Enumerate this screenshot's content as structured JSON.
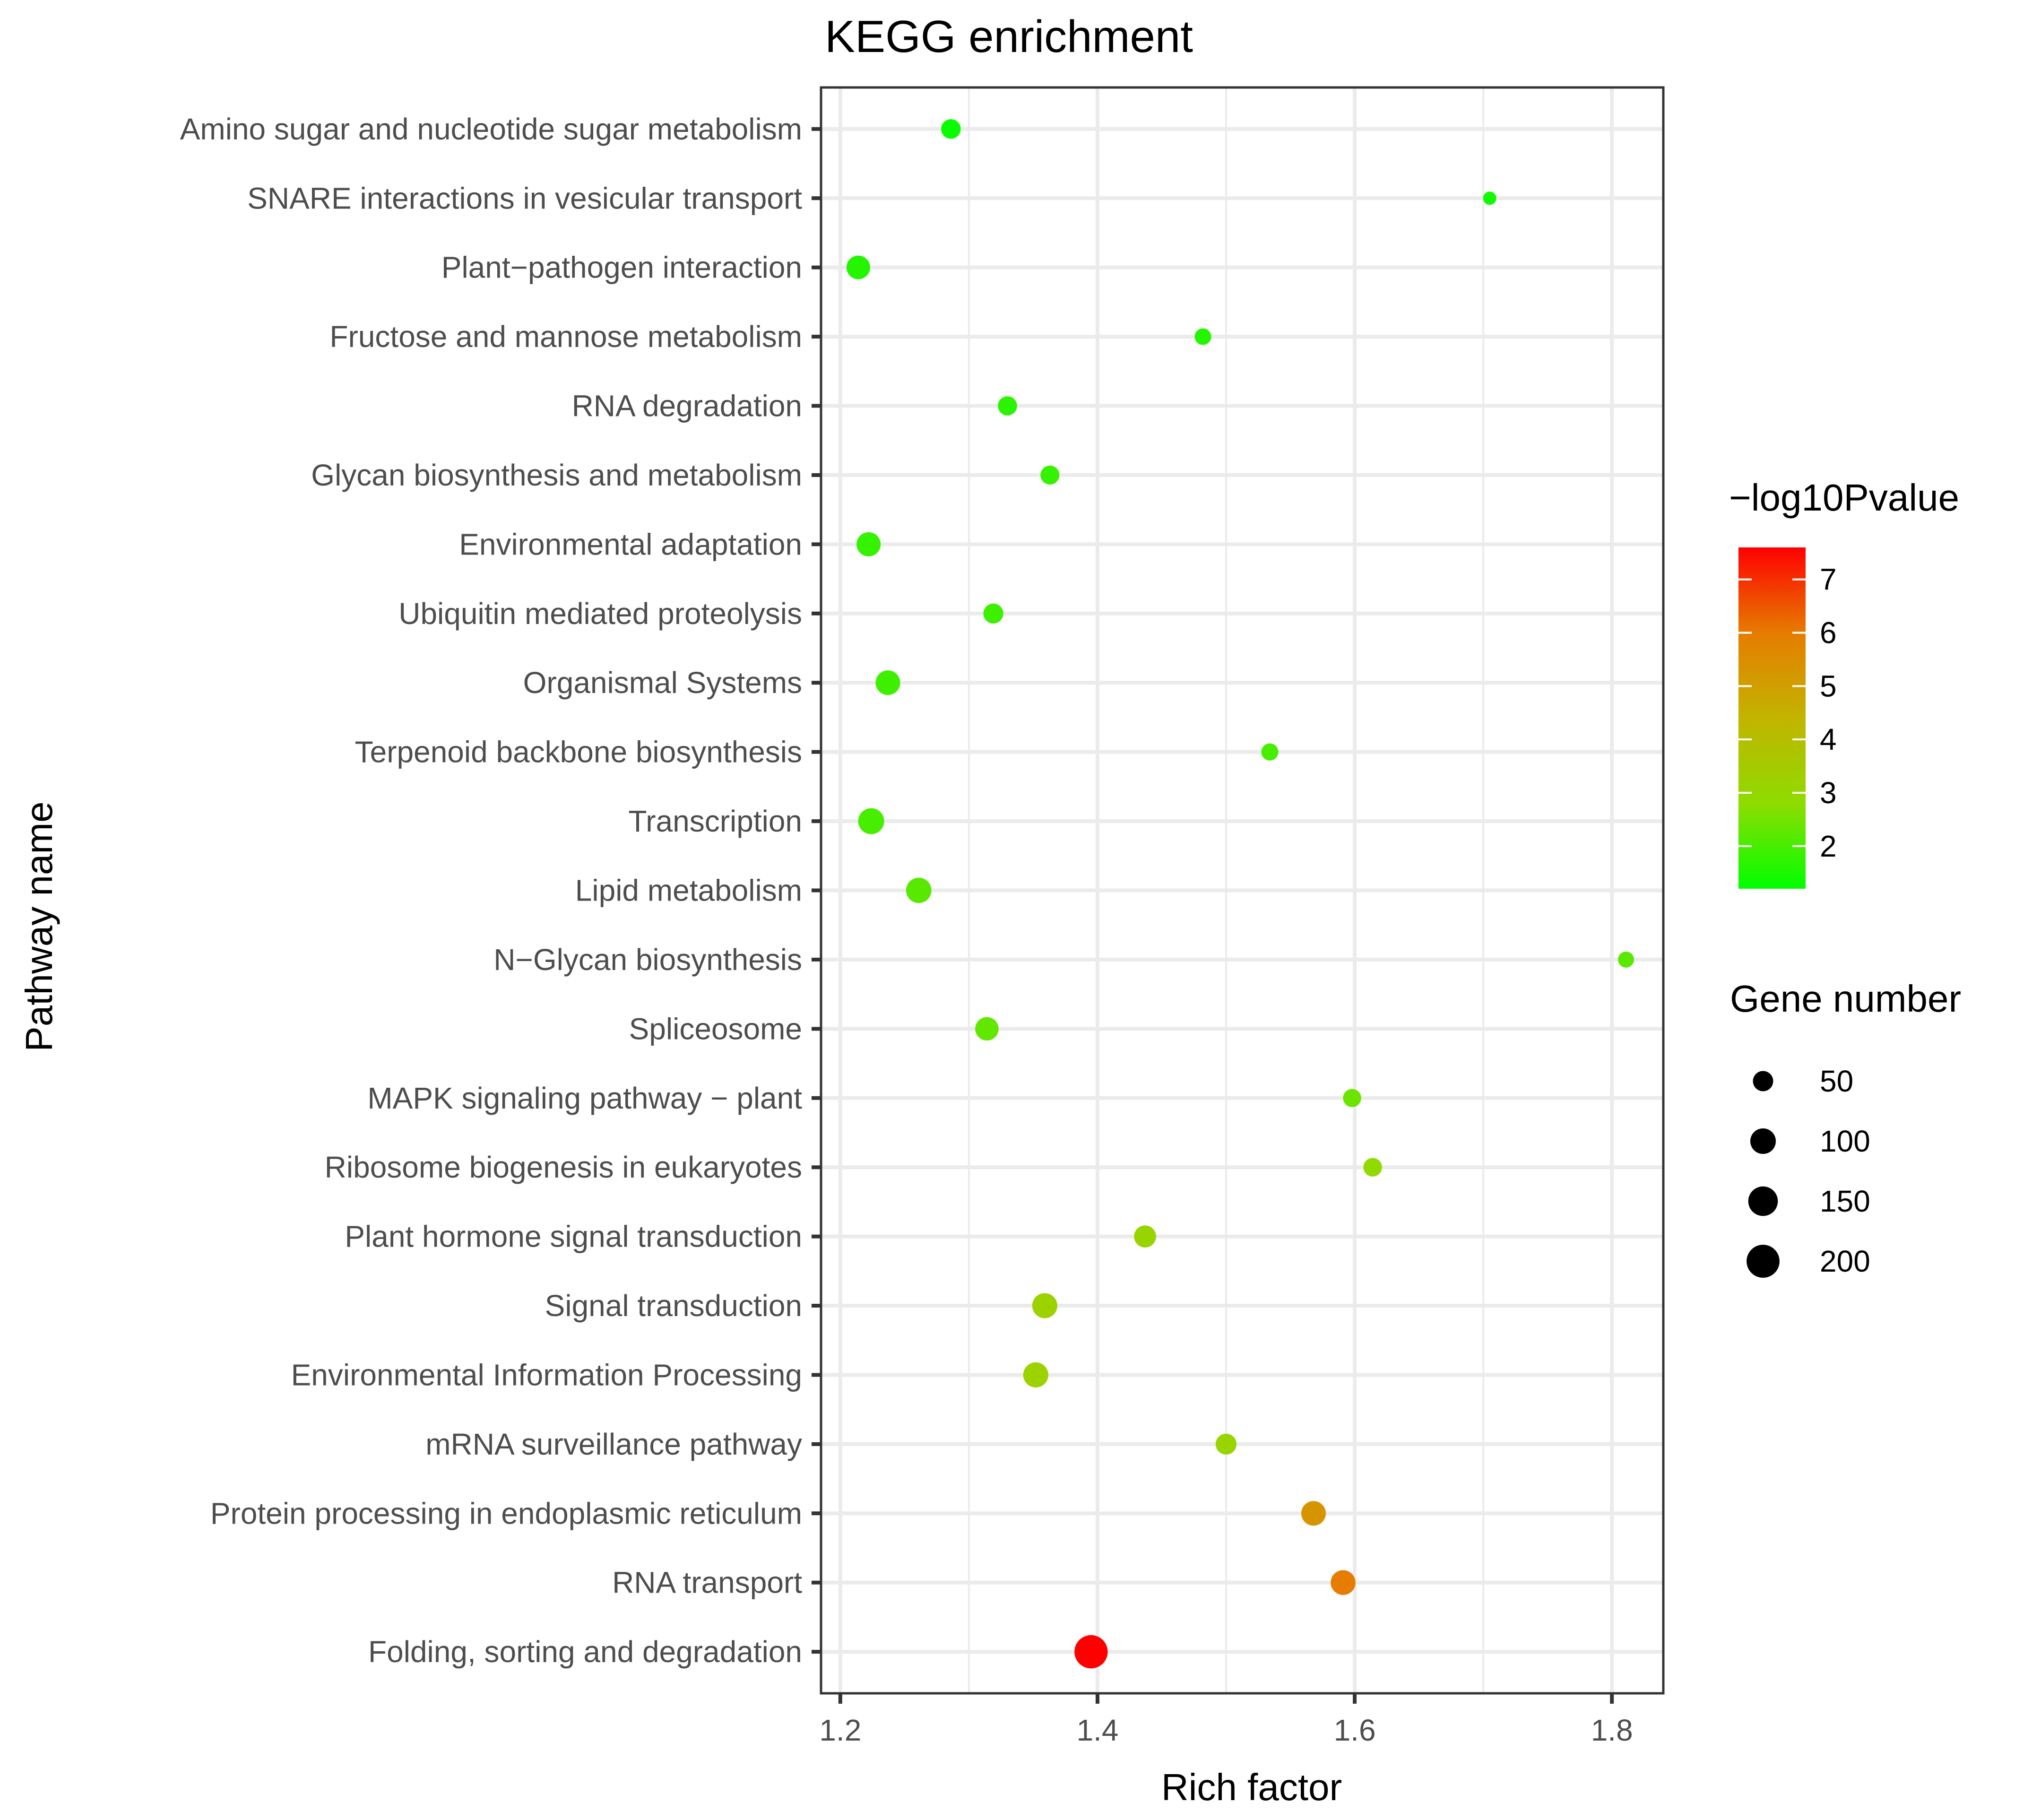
{
  "chart_data": {
    "type": "scatter",
    "title": "KEGG enrichment",
    "xlabel": "Rich factor",
    "ylabel": "Pathway name",
    "xlim": [
      1.185,
      1.84
    ],
    "xticks": [
      1.2,
      1.4,
      1.6,
      1.8
    ],
    "xtick_labels": [
      "1.2",
      "1.4",
      "1.6",
      "1.8"
    ],
    "x_minor_gridlines": [
      1.3,
      1.5,
      1.7
    ],
    "grid": true,
    "color_legend": {
      "title": "−log10Pvalue",
      "range": [
        1.2,
        7.6
      ],
      "ticks": [
        2,
        3,
        4,
        5,
        6,
        7
      ],
      "tick_labels": [
        "2",
        "3",
        "4",
        "5",
        "6",
        "7"
      ],
      "low_color": "#00FF00",
      "high_color": "#FF0000",
      "placement": "right"
    },
    "size_legend": {
      "title": "Gene number",
      "values": [
        50,
        100,
        150,
        200
      ],
      "labels": [
        "50",
        "100",
        "150",
        "200"
      ],
      "placement": "right"
    },
    "points": [
      {
        "pathway": "Amino sugar and nucleotide sugar metabolism",
        "rich_factor": 1.286,
        "gene_number": 45,
        "neg_log10_p": 1.3
      },
      {
        "pathway": "SNARE interactions in vesicular transport",
        "rich_factor": 1.705,
        "gene_number": 10,
        "neg_log10_p": 1.4
      },
      {
        "pathway": "Plant−pathogen interaction",
        "rich_factor": 1.214,
        "gene_number": 80,
        "neg_log10_p": 1.6
      },
      {
        "pathway": "Fructose and mannose metabolism",
        "rich_factor": 1.482,
        "gene_number": 25,
        "neg_log10_p": 1.6
      },
      {
        "pathway": "RNA degradation",
        "rich_factor": 1.33,
        "gene_number": 42,
        "neg_log10_p": 1.7
      },
      {
        "pathway": "Glycan biosynthesis and metabolism",
        "rich_factor": 1.363,
        "gene_number": 40,
        "neg_log10_p": 1.8
      },
      {
        "pathway": "Environmental adaptation",
        "rich_factor": 1.222,
        "gene_number": 85,
        "neg_log10_p": 1.8
      },
      {
        "pathway": "Ubiquitin mediated proteolysis",
        "rich_factor": 1.319,
        "gene_number": 48,
        "neg_log10_p": 1.9
      },
      {
        "pathway": "Organismal Systems",
        "rich_factor": 1.237,
        "gene_number": 90,
        "neg_log10_p": 1.9
      },
      {
        "pathway": "Terpenoid backbone biosynthesis",
        "rich_factor": 1.534,
        "gene_number": 28,
        "neg_log10_p": 2.0
      },
      {
        "pathway": "Transcription",
        "rich_factor": 1.224,
        "gene_number": 105,
        "neg_log10_p": 2.0
      },
      {
        "pathway": "Lipid metabolism",
        "rich_factor": 1.261,
        "gene_number": 98,
        "neg_log10_p": 2.2
      },
      {
        "pathway": "N−Glycan biosynthesis",
        "rich_factor": 1.811,
        "gene_number": 22,
        "neg_log10_p": 2.2
      },
      {
        "pathway": "Spliceosome",
        "rich_factor": 1.314,
        "gene_number": 78,
        "neg_log10_p": 2.3
      },
      {
        "pathway": "MAPK signaling pathway − plant",
        "rich_factor": 1.598,
        "gene_number": 35,
        "neg_log10_p": 2.4
      },
      {
        "pathway": "Ribosome biogenesis in eukaryotes",
        "rich_factor": 1.614,
        "gene_number": 38,
        "neg_log10_p": 2.9
      },
      {
        "pathway": "Plant hormone signal transduction",
        "rich_factor": 1.437,
        "gene_number": 65,
        "neg_log10_p": 3.1
      },
      {
        "pathway": "Signal transduction",
        "rich_factor": 1.359,
        "gene_number": 95,
        "neg_log10_p": 3.2
      },
      {
        "pathway": "Environmental Information Processing",
        "rich_factor": 1.352,
        "gene_number": 95,
        "neg_log10_p": 3.2
      },
      {
        "pathway": "mRNA surveillance pathway",
        "rich_factor": 1.5,
        "gene_number": 55,
        "neg_log10_p": 3.1
      },
      {
        "pathway": "Protein processing in endoplasmic reticulum",
        "rich_factor": 1.568,
        "gene_number": 90,
        "neg_log10_p": 5.3
      },
      {
        "pathway": "RNA transport",
        "rich_factor": 1.591,
        "gene_number": 92,
        "neg_log10_p": 6.0
      },
      {
        "pathway": "Folding, sorting and degradation",
        "rich_factor": 1.395,
        "gene_number": 205,
        "neg_log10_p": 7.6
      }
    ]
  }
}
